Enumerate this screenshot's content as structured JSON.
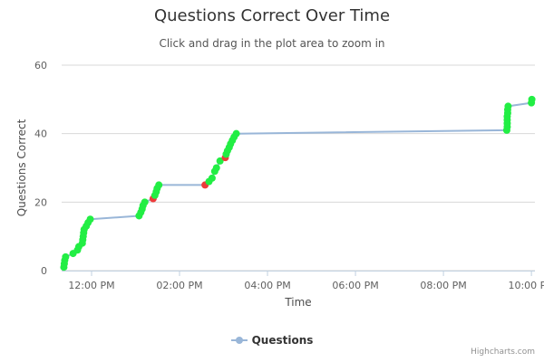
{
  "chart_data": {
    "type": "line",
    "title": "Questions Correct Over Time",
    "subtitle": "Click and drag in the plot area to zoom in",
    "xlabel": "Time",
    "ylabel": "Questions Correct",
    "x_tick_labels": [
      "12:00 PM",
      "02:00 PM",
      "04:00 PM",
      "06:00 PM",
      "08:00 PM",
      "10:00 PM"
    ],
    "x_ticks_hours": [
      12,
      14,
      16,
      18,
      20,
      22
    ],
    "xlim_hours": [
      11.32,
      22.08
    ],
    "y_tick_labels": [
      "0",
      "20",
      "40",
      "60"
    ],
    "y_ticks": [
      0,
      20,
      40,
      60
    ],
    "ylim": [
      0,
      60
    ],
    "grid": "horizontal",
    "legend_position": "bottom-center",
    "series": [
      {
        "name": "Questions",
        "color": "#99b6d8",
        "correct_marker_color": "#22ee44",
        "incorrect_marker_color": "#ee3b3b",
        "points": [
          {
            "t": 11.37,
            "y": 1,
            "correct": true
          },
          {
            "t": 11.38,
            "y": 2,
            "correct": true
          },
          {
            "t": 11.39,
            "y": 3,
            "correct": true
          },
          {
            "t": 11.41,
            "y": 4,
            "correct": true
          },
          {
            "t": 11.58,
            "y": 5,
            "correct": true
          },
          {
            "t": 11.68,
            "y": 6,
            "correct": true
          },
          {
            "t": 11.71,
            "y": 7,
            "correct": true
          },
          {
            "t": 11.79,
            "y": 8,
            "correct": true
          },
          {
            "t": 11.8,
            "y": 9,
            "correct": true
          },
          {
            "t": 11.81,
            "y": 10,
            "correct": true
          },
          {
            "t": 11.82,
            "y": 11,
            "correct": true
          },
          {
            "t": 11.83,
            "y": 12,
            "correct": true
          },
          {
            "t": 11.88,
            "y": 13,
            "correct": true
          },
          {
            "t": 11.92,
            "y": 14,
            "correct": true
          },
          {
            "t": 11.97,
            "y": 15,
            "correct": true
          },
          {
            "t": 13.08,
            "y": 16,
            "correct": true
          },
          {
            "t": 13.12,
            "y": 17,
            "correct": true
          },
          {
            "t": 13.15,
            "y": 18,
            "correct": true
          },
          {
            "t": 13.17,
            "y": 19,
            "correct": true
          },
          {
            "t": 13.21,
            "y": 20,
            "correct": true
          },
          {
            "t": 13.4,
            "y": 21,
            "correct": false
          },
          {
            "t": 13.44,
            "y": 22,
            "correct": true
          },
          {
            "t": 13.47,
            "y": 23,
            "correct": true
          },
          {
            "t": 13.49,
            "y": 24,
            "correct": true
          },
          {
            "t": 13.53,
            "y": 25,
            "correct": true
          },
          {
            "t": 14.58,
            "y": 25,
            "correct": false
          },
          {
            "t": 14.67,
            "y": 26,
            "correct": true
          },
          {
            "t": 14.74,
            "y": 27,
            "correct": true
          },
          {
            "t": 14.8,
            "y": 29,
            "correct": true
          },
          {
            "t": 14.84,
            "y": 30,
            "correct": true
          },
          {
            "t": 14.92,
            "y": 32,
            "correct": true
          },
          {
            "t": 15.04,
            "y": 33,
            "correct": false
          },
          {
            "t": 15.06,
            "y": 34,
            "correct": true
          },
          {
            "t": 15.09,
            "y": 35,
            "correct": true
          },
          {
            "t": 15.13,
            "y": 36,
            "correct": true
          },
          {
            "t": 15.16,
            "y": 37,
            "correct": true
          },
          {
            "t": 15.2,
            "y": 38,
            "correct": true
          },
          {
            "t": 15.24,
            "y": 39,
            "correct": true
          },
          {
            "t": 15.29,
            "y": 40,
            "correct": true
          },
          {
            "t": 21.44,
            "y": 41,
            "correct": true
          },
          {
            "t": 21.45,
            "y": 42,
            "correct": true
          },
          {
            "t": 21.45,
            "y": 43,
            "correct": true
          },
          {
            "t": 21.45,
            "y": 44,
            "correct": true
          },
          {
            "t": 21.45,
            "y": 45,
            "correct": true
          },
          {
            "t": 21.46,
            "y": 46,
            "correct": true
          },
          {
            "t": 21.46,
            "y": 47,
            "correct": true
          },
          {
            "t": 21.47,
            "y": 48,
            "correct": true
          },
          {
            "t": 22.0,
            "y": 49,
            "correct": true
          },
          {
            "t": 22.01,
            "y": 50,
            "correct": true
          }
        ]
      }
    ]
  },
  "legend": {
    "label": "Questions"
  },
  "credits": "Highcharts.com"
}
